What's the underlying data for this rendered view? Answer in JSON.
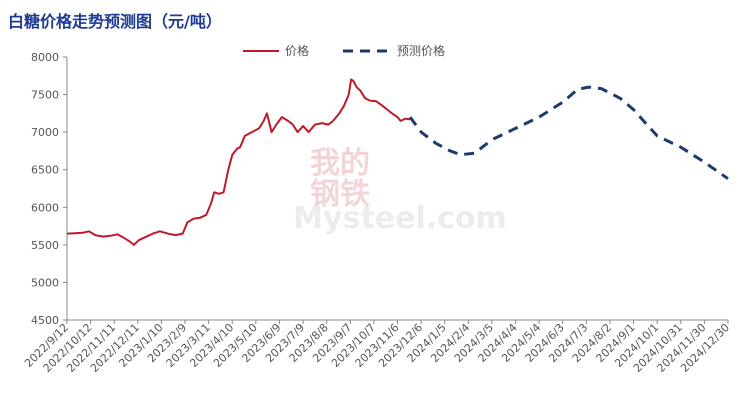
{
  "chart_data": {
    "type": "line",
    "title": "白糖价格走势预测图（元/吨）",
    "xlabel": "",
    "ylabel": "",
    "ylim": [
      4500,
      8000
    ],
    "yticks": [
      4500,
      5000,
      5500,
      6000,
      6500,
      7000,
      7500,
      8000
    ],
    "xlim": [
      "2022-09-12",
      "2024-12-30"
    ],
    "xtick_labels": [
      "2022/9/12",
      "2022/10/12",
      "2022/11/11",
      "2022/12/11",
      "2023/1/10",
      "2023/2/9",
      "2023/3/11",
      "2023/4/10",
      "2023/5/10",
      "2023/6/9",
      "2023/7/9",
      "2023/8/8",
      "2023/9/7",
      "2023/10/7",
      "2023/11/6",
      "2023/12/6",
      "2024/1/5",
      "2024/2/4",
      "2024/3/5",
      "2024/4/4",
      "2024/5/4",
      "2024/6/3",
      "2024/7/3",
      "2024/8/2",
      "2024/9/1",
      "2024/10/1",
      "2024/10/31",
      "2024/11/30",
      "2024/12/30"
    ],
    "legend_position": "top-center",
    "grid": false,
    "series": [
      {
        "name": "价格",
        "color": "#c0192a",
        "style": "solid",
        "points": [
          [
            "2022-09-12",
            5650
          ],
          [
            "2022-09-22",
            5655
          ],
          [
            "2022-10-02",
            5660
          ],
          [
            "2022-10-10",
            5680
          ],
          [
            "2022-10-18",
            5630
          ],
          [
            "2022-10-28",
            5610
          ],
          [
            "2022-11-06",
            5620
          ],
          [
            "2022-11-15",
            5640
          ],
          [
            "2022-11-22",
            5600
          ],
          [
            "2022-11-30",
            5550
          ],
          [
            "2022-12-06",
            5500
          ],
          [
            "2022-12-12",
            5560
          ],
          [
            "2022-12-20",
            5600
          ],
          [
            "2022-12-30",
            5650
          ],
          [
            "2023-01-08",
            5680
          ],
          [
            "2023-01-18",
            5650
          ],
          [
            "2023-01-28",
            5630
          ],
          [
            "2023-02-06",
            5650
          ],
          [
            "2023-02-12",
            5800
          ],
          [
            "2023-02-20",
            5850
          ],
          [
            "2023-02-28",
            5860
          ],
          [
            "2023-03-08",
            5900
          ],
          [
            "2023-03-14",
            6050
          ],
          [
            "2023-03-18",
            6200
          ],
          [
            "2023-03-24",
            6180
          ],
          [
            "2023-03-30",
            6200
          ],
          [
            "2023-04-05",
            6500
          ],
          [
            "2023-04-10",
            6700
          ],
          [
            "2023-04-16",
            6780
          ],
          [
            "2023-04-20",
            6800
          ],
          [
            "2023-04-26",
            6950
          ],
          [
            "2023-05-05",
            7000
          ],
          [
            "2023-05-14",
            7050
          ],
          [
            "2023-05-20",
            7150
          ],
          [
            "2023-05-24",
            7250
          ],
          [
            "2023-05-30",
            7000
          ],
          [
            "2023-06-05",
            7100
          ],
          [
            "2023-06-12",
            7200
          ],
          [
            "2023-06-20",
            7150
          ],
          [
            "2023-06-26",
            7100
          ],
          [
            "2023-07-02",
            7000
          ],
          [
            "2023-07-09",
            7080
          ],
          [
            "2023-07-16",
            7000
          ],
          [
            "2023-07-24",
            7100
          ],
          [
            "2023-08-02",
            7120
          ],
          [
            "2023-08-10",
            7100
          ],
          [
            "2023-08-16",
            7150
          ],
          [
            "2023-08-24",
            7250
          ],
          [
            "2023-08-30",
            7350
          ],
          [
            "2023-09-05",
            7500
          ],
          [
            "2023-09-08",
            7700
          ],
          [
            "2023-09-11",
            7680
          ],
          [
            "2023-09-15",
            7600
          ],
          [
            "2023-09-20",
            7550
          ],
          [
            "2023-09-26",
            7450
          ],
          [
            "2023-10-02",
            7420
          ],
          [
            "2023-10-10",
            7410
          ],
          [
            "2023-10-18",
            7350
          ],
          [
            "2023-10-24",
            7300
          ],
          [
            "2023-10-30",
            7250
          ],
          [
            "2023-11-06",
            7200
          ],
          [
            "2023-11-10",
            7150
          ],
          [
            "2023-11-16",
            7180
          ],
          [
            "2023-11-22",
            7170
          ]
        ]
      },
      {
        "name": "预测价格",
        "color": "#1f3a6e",
        "style": "dashed",
        "points": [
          [
            "2023-11-22",
            7200
          ],
          [
            "2023-12-06",
            7000
          ],
          [
            "2023-12-25",
            6850
          ],
          [
            "2024-01-12",
            6750
          ],
          [
            "2024-01-25",
            6700
          ],
          [
            "2024-02-12",
            6720
          ],
          [
            "2024-03-05",
            6900
          ],
          [
            "2024-04-04",
            7050
          ],
          [
            "2024-05-04",
            7200
          ],
          [
            "2024-06-03",
            7400
          ],
          [
            "2024-06-22",
            7570
          ],
          [
            "2024-07-06",
            7600
          ],
          [
            "2024-07-22",
            7580
          ],
          [
            "2024-08-15",
            7450
          ],
          [
            "2024-09-01",
            7300
          ],
          [
            "2024-09-18",
            7100
          ],
          [
            "2024-10-01",
            6950
          ],
          [
            "2024-10-31",
            6800
          ],
          [
            "2024-11-30",
            6600
          ],
          [
            "2024-12-30",
            6380
          ]
        ]
      }
    ]
  },
  "watermark": {
    "brand_cn_top": "我的",
    "brand_cn_bottom": "钢铁",
    "brand_en": "Mysteel.com"
  }
}
